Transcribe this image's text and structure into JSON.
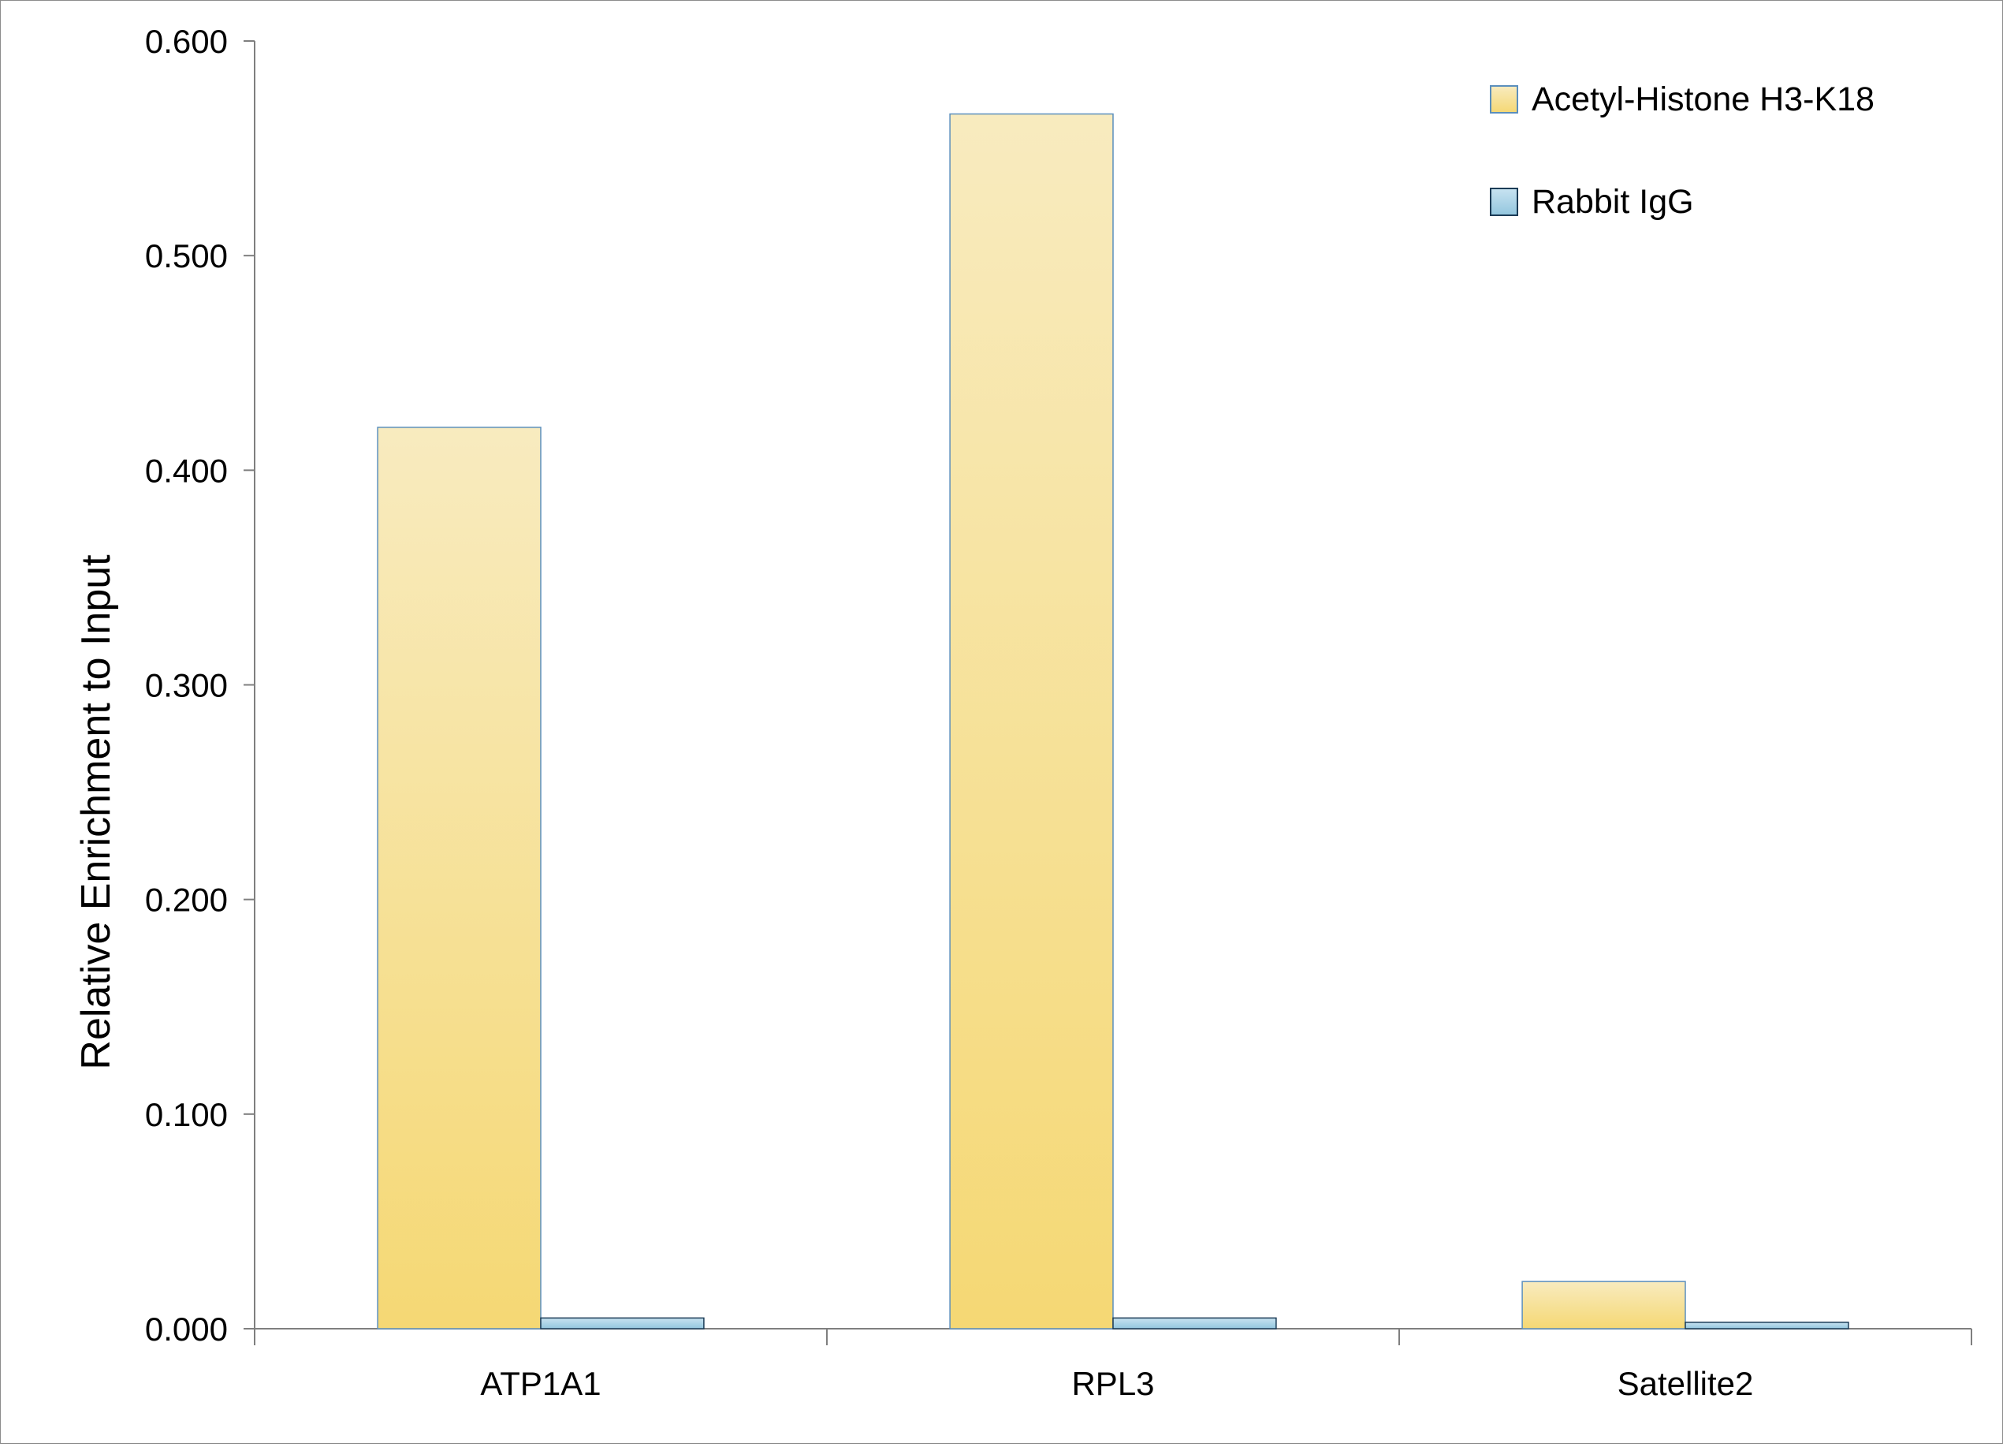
{
  "chart_data": {
    "type": "bar",
    "title": "",
    "xlabel": "",
    "ylabel": "Relative Enrichment to Input",
    "categories": [
      "ATP1A1",
      "RPL3",
      "Satellite2"
    ],
    "series": [
      {
        "name": "Acetyl-Histone H3-K18",
        "values": [
          0.42,
          0.566,
          0.022
        ],
        "color_top": "#f8ebbf",
        "color_bottom": "#f5d874",
        "stroke": "#5b8fbd"
      },
      {
        "name": "Rabbit IgG",
        "values": [
          0.005,
          0.005,
          0.003
        ],
        "color_top": "#c8e3f1",
        "color_bottom": "#93c6de",
        "stroke": "#1b3b56"
      }
    ],
    "ylim": [
      0,
      0.6
    ],
    "yticks": [
      "0.000",
      "0.100",
      "0.200",
      "0.300",
      "0.400",
      "0.500",
      "0.600"
    ],
    "grid": false,
    "legend_position": "top-right"
  }
}
